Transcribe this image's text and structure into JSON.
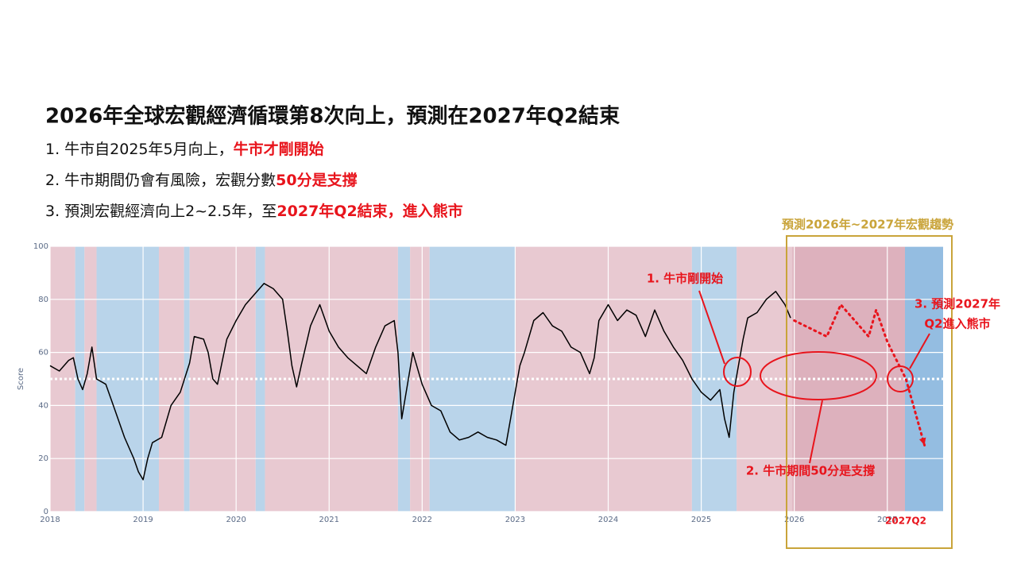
{
  "slide": {
    "title": "2026年全球宏觀經濟循環第8次向上，預測在2027年Q2結束",
    "bullets": [
      {
        "text": "1. 牛市自2025年5月向上，",
        "highlight": "牛市才剛開始"
      },
      {
        "text": "2. 牛市期間仍會有風險，宏觀分數",
        "highlight": "50分是支撐"
      },
      {
        "text": "3. 預測宏觀經濟向上2~2.5年，至",
        "highlight": "2027年Q2結束，進入熊市"
      }
    ]
  },
  "chart_data": {
    "type": "line",
    "y_label": "Score",
    "xlim": [
      2018,
      2027.6
    ],
    "ylim": [
      0,
      100
    ],
    "xticks": [
      2018,
      2019,
      2020,
      2021,
      2022,
      2023,
      2024,
      2025,
      2026,
      2027
    ],
    "yticks": [
      0,
      20,
      40,
      60,
      80,
      100
    ],
    "grid": true,
    "reference_line": {
      "value": 50,
      "color": "#ffffff"
    },
    "regions": [
      {
        "start": 2018,
        "end": 2018.27,
        "color": "#e8c9d1"
      },
      {
        "start": 2018.27,
        "end": 2018.37,
        "color": "#b9d4ea"
      },
      {
        "start": 2018.37,
        "end": 2018.5,
        "color": "#e8c9d1"
      },
      {
        "start": 2018.5,
        "end": 2019.17,
        "color": "#b9d4ea"
      },
      {
        "start": 2019.17,
        "end": 2019.44,
        "color": "#e8c9d1"
      },
      {
        "start": 2019.44,
        "end": 2019.5,
        "color": "#b9d4ea"
      },
      {
        "start": 2019.5,
        "end": 2020.21,
        "color": "#e8c9d1"
      },
      {
        "start": 2020.21,
        "end": 2020.31,
        "color": "#b9d4ea"
      },
      {
        "start": 2020.31,
        "end": 2021.74,
        "color": "#e8c9d1"
      },
      {
        "start": 2021.74,
        "end": 2021.87,
        "color": "#b9d4ea"
      },
      {
        "start": 2021.87,
        "end": 2022.08,
        "color": "#e8c9d1"
      },
      {
        "start": 2022.08,
        "end": 2023.0,
        "color": "#b9d4ea"
      },
      {
        "start": 2023.0,
        "end": 2024.9,
        "color": "#e8c9d1"
      },
      {
        "start": 2024.9,
        "end": 2025.38,
        "color": "#b9d4ea"
      },
      {
        "start": 2025.38,
        "end": 2025.98,
        "color": "#e8c9d1"
      },
      {
        "start": 2025.98,
        "end": 2027.19,
        "color": "#ddb1bd"
      },
      {
        "start": 2027.19,
        "end": 2027.6,
        "color": "#94bde1"
      }
    ],
    "series": [
      {
        "name": "Score",
        "color": "#000000",
        "style": "solid",
        "x": [
          2018.0,
          2018.1,
          2018.2,
          2018.25,
          2018.3,
          2018.35,
          2018.4,
          2018.45,
          2018.5,
          2018.6,
          2018.7,
          2018.8,
          2018.9,
          2018.95,
          2019.0,
          2019.05,
          2019.1,
          2019.2,
          2019.3,
          2019.4,
          2019.5,
          2019.55,
          2019.65,
          2019.7,
          2019.75,
          2019.8,
          2019.9,
          2020.0,
          2020.1,
          2020.2,
          2020.3,
          2020.4,
          2020.5,
          2020.55,
          2020.6,
          2020.65,
          2020.7,
          2020.8,
          2020.9,
          2021.0,
          2021.1,
          2021.2,
          2021.3,
          2021.4,
          2021.5,
          2021.6,
          2021.7,
          2021.74,
          2021.78,
          2021.9,
          2022.0,
          2022.1,
          2022.2,
          2022.3,
          2022.4,
          2022.5,
          2022.6,
          2022.7,
          2022.8,
          2022.9,
          2022.95,
          2023.0,
          2023.05,
          2023.1,
          2023.2,
          2023.3,
          2023.4,
          2023.5,
          2023.6,
          2023.7,
          2023.8,
          2023.85,
          2023.9,
          2024.0,
          2024.1,
          2024.2,
          2024.3,
          2024.4,
          2024.5,
          2024.6,
          2024.7,
          2024.8,
          2024.9,
          2025.0,
          2025.1,
          2025.2,
          2025.25,
          2025.3,
          2025.35,
          2025.4,
          2025.45,
          2025.5,
          2025.6,
          2025.7,
          2025.8,
          2025.9,
          2025.96
        ],
        "values": [
          55,
          53,
          57,
          58,
          50,
          46,
          52,
          62,
          50,
          48,
          38,
          28,
          20,
          15,
          12,
          20,
          26,
          28,
          40,
          45,
          56,
          66,
          65,
          60,
          50,
          48,
          65,
          72,
          78,
          82,
          86,
          84,
          80,
          68,
          55,
          47,
          55,
          70,
          78,
          68,
          62,
          58,
          55,
          52,
          62,
          70,
          72,
          60,
          35,
          60,
          48,
          40,
          38,
          30,
          27,
          28,
          30,
          28,
          27,
          25,
          35,
          45,
          55,
          60,
          72,
          75,
          70,
          68,
          62,
          60,
          52,
          58,
          72,
          78,
          72,
          76,
          74,
          66,
          76,
          68,
          62,
          57,
          50,
          45,
          42,
          46,
          35,
          28,
          45,
          55,
          65,
          73,
          75,
          80,
          83,
          78,
          73
        ]
      },
      {
        "name": "預測",
        "color": "#e8141c",
        "style": "dotted",
        "x": [
          2026.0,
          2026.35,
          2026.5,
          2026.8,
          2026.88,
          2027.0,
          2027.2,
          2027.4
        ],
        "values": [
          72,
          66,
          78,
          66,
          76,
          64,
          50,
          25
        ]
      }
    ],
    "forecast_label": "預測2026年~2027年宏觀趨勢",
    "end_label": "2027Q2",
    "annotations": [
      {
        "lines": [
          "1. 牛市剛開始"
        ]
      },
      {
        "lines": [
          "2. 牛市期間50分是支撐"
        ]
      },
      {
        "lines": [
          "3. 預測2027年",
          "Q2進入熊市"
        ]
      }
    ]
  }
}
